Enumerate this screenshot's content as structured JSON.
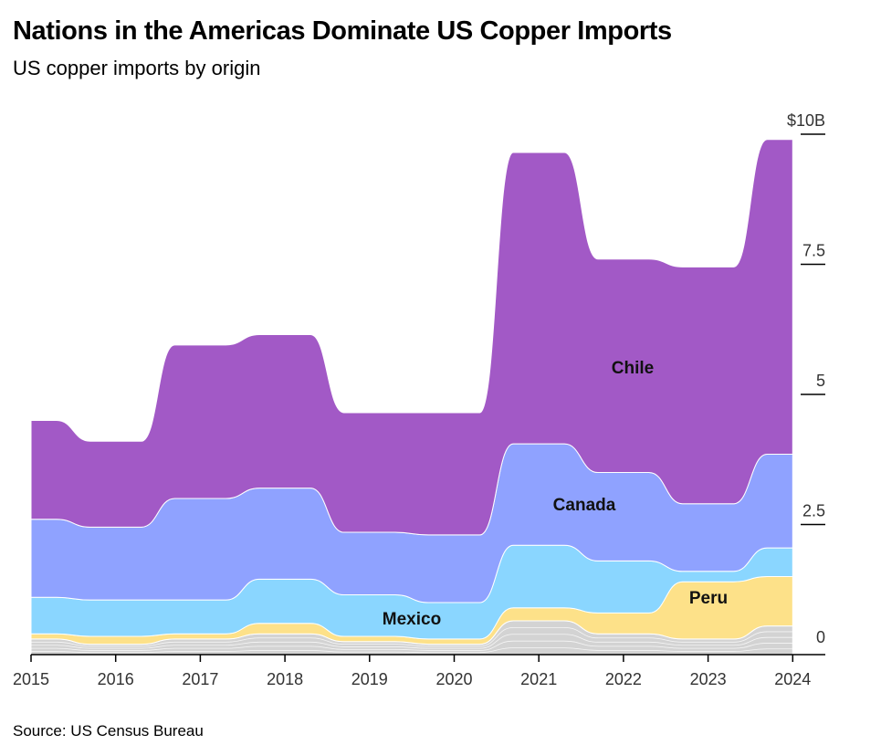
{
  "title": "Nations in the Americas Dominate US Copper Imports",
  "subtitle": "US copper imports by origin",
  "source": "Source: US Census Bureau",
  "chart_data": {
    "type": "area",
    "title": "Nations in the Americas Dominate US Copper Imports",
    "subtitle": "US copper imports by origin",
    "x": [
      2015,
      2016,
      2017,
      2018,
      2019,
      2020,
      2021,
      2022,
      2023,
      2024
    ],
    "x_tick_labels": [
      "2015",
      "2016",
      "2017",
      "2018",
      "2019",
      "2020",
      "2021",
      "2022",
      "2023",
      "2024"
    ],
    "y_ticks": [
      {
        "value": 0,
        "label": "0"
      },
      {
        "value": 2.5,
        "label": "2.5"
      },
      {
        "value": 5,
        "label": "5"
      },
      {
        "value": 7.5,
        "label": "7.5"
      },
      {
        "value": 10,
        "label": "$10B"
      }
    ],
    "ylim": [
      0,
      10
    ],
    "unit": "$B",
    "grid": false,
    "series": [
      {
        "name": "",
        "color": "#d3d3d3",
        "values": [
          0.3,
          0.2,
          0.3,
          0.4,
          0.25,
          0.2,
          0.65,
          0.4,
          0.3,
          0.55
        ]
      },
      {
        "name": "",
        "color": "#fde189",
        "values": [
          0.1,
          0.15,
          0.1,
          0.2,
          0.1,
          0.1,
          0.25,
          0.4,
          1.1,
          0.95
        ]
      },
      {
        "name": "Mexico",
        "color": "#8ad6ff",
        "values": [
          0.7,
          0.7,
          0.65,
          0.85,
          0.8,
          0.7,
          1.2,
          1.0,
          0.2,
          0.55
        ]
      },
      {
        "name": "Canada",
        "color": "#8fa2ff",
        "values": [
          1.5,
          1.4,
          1.95,
          1.75,
          1.2,
          1.3,
          1.95,
          1.7,
          1.3,
          1.8
        ]
      },
      {
        "name": "Chile",
        "color": "#a259c6",
        "values": [
          1.9,
          1.65,
          2.95,
          2.95,
          2.3,
          2.35,
          5.6,
          4.1,
          4.55,
          6.05
        ]
      }
    ],
    "annotations": [
      "Chile",
      "Canada",
      "Mexico",
      "Peru"
    ]
  },
  "labels": {
    "chile": "Chile",
    "canada": "Canada",
    "mexico": "Mexico",
    "peru": "Peru"
  }
}
